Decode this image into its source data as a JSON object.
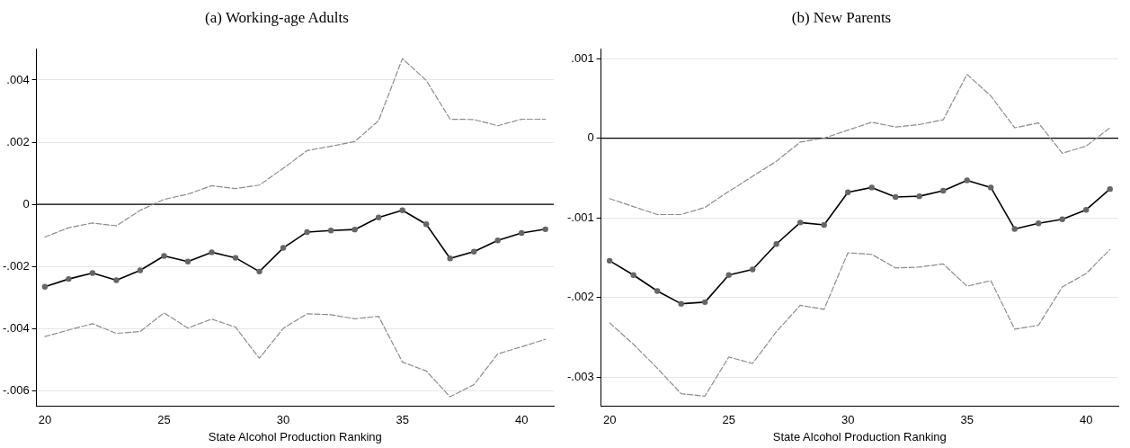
{
  "chart_data": [
    {
      "type": "line",
      "title": "(a) Working-age Adults",
      "xlabel": "State Alcohol Production Ranking",
      "x": [
        20,
        21,
        22,
        23,
        24,
        25,
        26,
        27,
        28,
        29,
        30,
        31,
        32,
        33,
        34,
        35,
        36,
        37,
        38,
        39,
        40,
        41
      ],
      "series": [
        {
          "color": "#8c8c8c",
          "line_style": "dashed",
          "marker": "none",
          "values": [
            -0.00105,
            -0.00075,
            -0.0006,
            -0.00069,
            -0.00019,
            0.00016,
            0.00033,
            0.0006,
            0.00051,
            0.00062,
            0.00116,
            0.00173,
            0.00187,
            0.00202,
            0.00269,
            0.00469,
            0.00399,
            0.00274,
            0.00273,
            0.00253,
            0.00274,
            0.00274
          ]
        },
        {
          "color": "#000000",
          "line_style": "solid",
          "marker": "circle",
          "values": [
            -0.00265,
            -0.0024,
            -0.00221,
            -0.00244,
            -0.00212,
            -0.00166,
            -0.00184,
            -0.00154,
            -0.00172,
            -0.00216,
            -0.0014,
            -0.00089,
            -0.00084,
            -0.00081,
            -0.00042,
            -0.00019,
            -0.00064,
            -0.00174,
            -0.00152,
            -0.00116,
            -0.00092,
            -0.0008
          ]
        },
        {
          "color": "#8c8c8c",
          "line_style": "dashed",
          "marker": "none",
          "values": [
            -0.00425,
            -0.00404,
            -0.00384,
            -0.00415,
            -0.00409,
            -0.00349,
            -0.00398,
            -0.00369,
            -0.00395,
            -0.00495,
            -0.00399,
            -0.00352,
            -0.00355,
            -0.00368,
            -0.0036,
            -0.00507,
            -0.00536,
            -0.00619,
            -0.0058,
            -0.00481,
            -0.00458,
            -0.00434
          ]
        }
      ],
      "xlim": [
        19.65,
        41.35
      ],
      "xticks": [
        20,
        25,
        30,
        35,
        40
      ],
      "ylim": [
        -0.0065,
        0.005
      ],
      "yticks": [
        {
          "value": -0.006,
          "label": "-.006"
        },
        {
          "value": -0.004,
          "label": "-.004"
        },
        {
          "value": -0.002,
          "label": "-.002"
        },
        0,
        {
          "value": 0.002,
          "label": ".002"
        },
        {
          "value": 0.004,
          "label": ".004"
        }
      ],
      "ref_lines": [
        {
          "axis": "y",
          "value": 0,
          "color": "#000000"
        }
      ],
      "grid": "y",
      "legend": false
    },
    {
      "type": "line",
      "title": "(b) New Parents",
      "xlabel": "State Alcohol Production Ranking",
      "x": [
        20,
        21,
        22,
        23,
        24,
        25,
        26,
        27,
        28,
        29,
        30,
        31,
        32,
        33,
        34,
        35,
        36,
        37,
        38,
        39,
        40,
        41
      ],
      "series": [
        {
          "color": "#8c8c8c",
          "line_style": "dashed",
          "marker": "none",
          "values": [
            -0.00076,
            -0.00086,
            -0.00096,
            -0.00096,
            -0.00087,
            -0.00067,
            -0.00048,
            -0.00029,
            -5e-05,
            0,
            0.0001,
            0.0002,
            0.00014,
            0.00017,
            0.00023,
            0.0008,
            0.00053,
            0.00013,
            0.00019,
            -0.00019,
            -0.0001,
            0.00013
          ]
        },
        {
          "color": "#000000",
          "line_style": "solid",
          "marker": "circle",
          "values": [
            -0.00154,
            -0.00172,
            -0.00192,
            -0.00208,
            -0.00206,
            -0.00172,
            -0.00165,
            -0.00133,
            -0.00106,
            -0.00109,
            -0.00068,
            -0.00062,
            -0.00074,
            -0.00073,
            -0.00066,
            -0.00053,
            -0.00062,
            -0.00114,
            -0.00107,
            -0.00102,
            -0.0009,
            -0.00064
          ]
        },
        {
          "color": "#8c8c8c",
          "line_style": "dashed",
          "marker": "none",
          "values": [
            -0.00232,
            -0.00259,
            -0.00289,
            -0.00321,
            -0.00324,
            -0.00275,
            -0.00283,
            -0.00243,
            -0.0021,
            -0.00215,
            -0.00144,
            -0.00146,
            -0.00163,
            -0.00162,
            -0.00158,
            -0.00186,
            -0.00179,
            -0.0024,
            -0.00235,
            -0.00187,
            -0.0017,
            -0.0014
          ]
        }
      ],
      "xlim": [
        19.64,
        41.35
      ],
      "xticks": [
        20,
        25,
        30,
        35,
        40
      ],
      "ylim": [
        -0.00337,
        0.00112
      ],
      "yticks": [
        {
          "value": -0.003,
          "label": "-.003"
        },
        {
          "value": -0.002,
          "label": "-.002"
        },
        {
          "value": -0.001,
          "label": "-.001"
        },
        0,
        {
          "value": 0.001,
          "label": ".001"
        }
      ],
      "ref_lines": [
        {
          "axis": "y",
          "value": 0,
          "color": "#000000"
        }
      ],
      "grid": "y",
      "legend": false
    }
  ]
}
